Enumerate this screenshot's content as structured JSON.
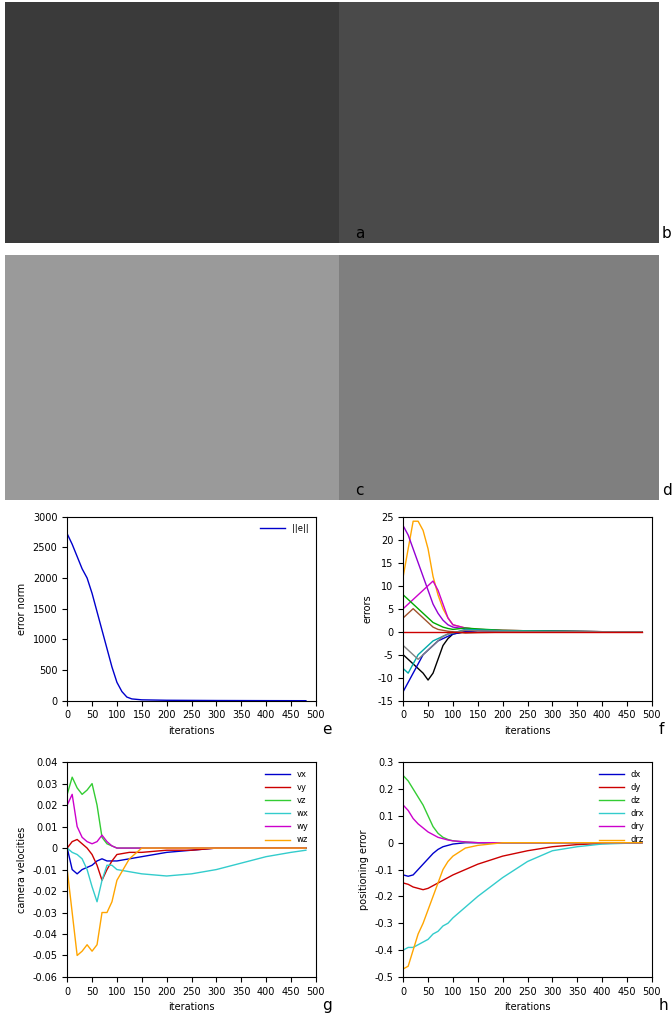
{
  "images": [
    {
      "label": "a"
    },
    {
      "label": "b"
    },
    {
      "label": "c"
    },
    {
      "label": "d"
    }
  ],
  "chart_data": [
    {
      "type": "line",
      "annotations": [
        "e"
      ],
      "xlabel": "iterations",
      "ylabel": "error norm",
      "xlim": [
        0,
        500
      ],
      "xticks": [
        0,
        50,
        100,
        150,
        200,
        250,
        300,
        350,
        400,
        450,
        500
      ],
      "ylim": [
        0,
        3000
      ],
      "yticks": [
        0,
        500,
        1000,
        1500,
        2000,
        2500,
        3000
      ],
      "legend": "upper right",
      "x": [
        0,
        10,
        20,
        30,
        40,
        50,
        60,
        70,
        80,
        90,
        100,
        110,
        120,
        130,
        150,
        200,
        300,
        400,
        480
      ],
      "series": [
        {
          "name": "||e||",
          "color": "#0000cc",
          "values": [
            2720,
            2550,
            2350,
            2150,
            2000,
            1750,
            1450,
            1150,
            850,
            550,
            300,
            150,
            60,
            30,
            15,
            8,
            4,
            2,
            1
          ]
        }
      ]
    },
    {
      "type": "line",
      "annotations": [
        "f"
      ],
      "xlabel": "iterations",
      "ylabel": "errors",
      "xlim": [
        0,
        500
      ],
      "xticks": [
        0,
        50,
        100,
        150,
        200,
        250,
        300,
        350,
        400,
        450,
        500
      ],
      "ylim": [
        -15,
        25
      ],
      "yticks": [
        -15,
        -10,
        -5,
        0,
        5,
        10,
        15,
        20,
        25
      ],
      "x": [
        0,
        10,
        20,
        30,
        40,
        50,
        60,
        70,
        80,
        90,
        100,
        125,
        150,
        200,
        300,
        400,
        480
      ],
      "series": [
        {
          "color": "#ffa500",
          "values": [
            12,
            18,
            24,
            24,
            22,
            18,
            12,
            8,
            5,
            3,
            1.5,
            0.8,
            0.5,
            0.3,
            0.1,
            0,
            0
          ]
        },
        {
          "color": "#9400d3",
          "values": [
            23,
            21,
            18,
            15,
            12,
            9,
            6,
            4,
            2.5,
            1.5,
            1,
            0.6,
            0.4,
            0.2,
            0.1,
            0,
            0
          ]
        },
        {
          "color": "#cc00cc",
          "values": [
            5,
            6,
            7,
            8,
            9,
            10,
            11,
            9,
            6,
            3,
            1.5,
            0.8,
            0.5,
            0.3,
            0.1,
            0,
            0
          ]
        },
        {
          "color": "#000000",
          "values": [
            -5,
            -6,
            -7,
            -8,
            -9,
            -10.5,
            -9,
            -6,
            -3,
            -1.5,
            -0.5,
            0,
            0.3,
            0.2,
            0.1,
            0,
            0
          ]
        },
        {
          "color": "#0000cc",
          "values": [
            -13,
            -11,
            -9,
            -7,
            -5,
            -4,
            -3,
            -2,
            -1.5,
            -1,
            -0.5,
            0,
            0.2,
            0.1,
            0,
            0,
            0
          ]
        },
        {
          "color": "#00aa00",
          "values": [
            8,
            7,
            6,
            5,
            4,
            3,
            2,
            1.5,
            1,
            0.7,
            0.5,
            0.8,
            0.6,
            0.3,
            0.1,
            0,
            0
          ]
        },
        {
          "color": "#00aaaa",
          "values": [
            -8,
            -9,
            -7,
            -5,
            -4,
            -3,
            -2,
            -1.5,
            -1,
            -0.5,
            -0.3,
            0.5,
            0.4,
            0.2,
            0.1,
            0,
            0
          ]
        },
        {
          "color": "#a0522d",
          "values": [
            3,
            4,
            5,
            4,
            3,
            2,
            1,
            0.5,
            0.3,
            0.1,
            0,
            -0.3,
            -0.2,
            -0.1,
            0,
            0,
            0
          ]
        },
        {
          "color": "#808080",
          "values": [
            -3,
            -4,
            -5,
            -6,
            -5,
            -4,
            -3,
            -2,
            -1,
            -0.5,
            -0.2,
            0.3,
            0.2,
            0.1,
            0,
            0,
            0
          ]
        },
        {
          "color": "#cc0000",
          "values": [
            0,
            0,
            0,
            0,
            0,
            0,
            0,
            0,
            0,
            0,
            0,
            0,
            0,
            0,
            0,
            0,
            0
          ]
        }
      ]
    },
    {
      "type": "line",
      "annotations": [
        "g"
      ],
      "xlabel": "iterations",
      "ylabel": "camera velocities",
      "xlim": [
        0,
        500
      ],
      "xticks": [
        0,
        50,
        100,
        150,
        200,
        250,
        300,
        350,
        400,
        450,
        500
      ],
      "ylim": [
        -0.06,
        0.04
      ],
      "yticks": [
        -0.06,
        -0.05,
        -0.04,
        -0.03,
        -0.02,
        -0.01,
        0,
        0.01,
        0.02,
        0.03,
        0.04
      ],
      "legend": "upper right",
      "x": [
        0,
        10,
        20,
        30,
        40,
        50,
        60,
        70,
        80,
        90,
        100,
        125,
        150,
        200,
        250,
        300,
        350,
        400,
        450,
        480
      ],
      "series": [
        {
          "name": "vx",
          "color": "#0000cc",
          "values": [
            0,
            -0.01,
            -0.012,
            -0.01,
            -0.009,
            -0.008,
            -0.006,
            -0.005,
            -0.006,
            -0.006,
            -0.006,
            -0.005,
            -0.004,
            -0.002,
            -0.001,
            0,
            0,
            0,
            0,
            0
          ]
        },
        {
          "name": "vy",
          "color": "#cc0000",
          "values": [
            0,
            0.003,
            0.004,
            0.002,
            0,
            -0.003,
            -0.008,
            -0.015,
            -0.01,
            -0.006,
            -0.003,
            -0.002,
            -0.002,
            -0.001,
            -0.001,
            0,
            0,
            0,
            0,
            0
          ]
        },
        {
          "name": "vz",
          "color": "#33cc33",
          "values": [
            0.025,
            0.033,
            0.028,
            0.025,
            0.027,
            0.03,
            0.02,
            0.005,
            0.002,
            0.001,
            0,
            0,
            0,
            0,
            0,
            0,
            0,
            0,
            0,
            0
          ]
        },
        {
          "name": "wx",
          "color": "#33cccc",
          "values": [
            0,
            -0.002,
            -0.003,
            -0.005,
            -0.01,
            -0.018,
            -0.025,
            -0.015,
            -0.008,
            -0.008,
            -0.01,
            -0.011,
            -0.012,
            -0.013,
            -0.012,
            -0.01,
            -0.007,
            -0.004,
            -0.002,
            -0.001
          ]
        },
        {
          "name": "wy",
          "color": "#cc00cc",
          "values": [
            0.02,
            0.025,
            0.01,
            0.005,
            0.003,
            0.002,
            0.003,
            0.006,
            0.003,
            0.001,
            0,
            0,
            0,
            0,
            0,
            0,
            0,
            0,
            0,
            0
          ]
        },
        {
          "name": "wz",
          "color": "#ffa500",
          "values": [
            -0.01,
            -0.03,
            -0.05,
            -0.048,
            -0.045,
            -0.048,
            -0.045,
            -0.03,
            -0.03,
            -0.025,
            -0.015,
            -0.005,
            0,
            0,
            0,
            0,
            0,
            0,
            0,
            0
          ]
        }
      ]
    },
    {
      "type": "line",
      "annotations": [
        "h"
      ],
      "xlabel": "iterations",
      "ylabel": "positioning error",
      "xlim": [
        0,
        500
      ],
      "xticks": [
        0,
        50,
        100,
        150,
        200,
        250,
        300,
        350,
        400,
        450,
        500
      ],
      "ylim": [
        -0.5,
        0.3
      ],
      "yticks": [
        -0.5,
        -0.4,
        -0.3,
        -0.2,
        -0.1,
        0,
        0.1,
        0.2,
        0.3
      ],
      "legend": "upper right",
      "x": [
        0,
        10,
        20,
        30,
        40,
        50,
        60,
        70,
        80,
        90,
        100,
        125,
        150,
        200,
        250,
        300,
        350,
        400,
        450,
        480
      ],
      "series": [
        {
          "name": "dx",
          "color": "#0000cc",
          "values": [
            -0.12,
            -0.125,
            -0.12,
            -0.1,
            -0.08,
            -0.06,
            -0.04,
            -0.025,
            -0.015,
            -0.01,
            -0.005,
            0,
            0,
            0,
            0,
            0,
            0,
            0,
            0,
            0
          ]
        },
        {
          "name": "dy",
          "color": "#cc0000",
          "values": [
            -0.15,
            -0.155,
            -0.165,
            -0.17,
            -0.175,
            -0.17,
            -0.16,
            -0.15,
            -0.14,
            -0.13,
            -0.12,
            -0.1,
            -0.08,
            -0.05,
            -0.03,
            -0.015,
            -0.007,
            -0.003,
            -0.001,
            0
          ]
        },
        {
          "name": "dz",
          "color": "#33cc33",
          "values": [
            0.25,
            0.23,
            0.2,
            0.17,
            0.14,
            0.1,
            0.06,
            0.035,
            0.02,
            0.012,
            0.007,
            0.002,
            0,
            0,
            0,
            0,
            0,
            0,
            0,
            0
          ]
        },
        {
          "name": "drx",
          "color": "#33cccc",
          "values": [
            -0.4,
            -0.39,
            -0.39,
            -0.38,
            -0.37,
            -0.36,
            -0.34,
            -0.33,
            -0.31,
            -0.3,
            -0.28,
            -0.24,
            -0.2,
            -0.13,
            -0.07,
            -0.03,
            -0.015,
            -0.005,
            -0.002,
            0
          ]
        },
        {
          "name": "dry",
          "color": "#cc00cc",
          "values": [
            0.14,
            0.12,
            0.09,
            0.07,
            0.055,
            0.04,
            0.03,
            0.02,
            0.015,
            0.01,
            0.007,
            0.003,
            0,
            0,
            0,
            0,
            0,
            0,
            0,
            0
          ]
        },
        {
          "name": "drz",
          "color": "#ffa500",
          "values": [
            -0.47,
            -0.46,
            -0.4,
            -0.34,
            -0.3,
            -0.25,
            -0.2,
            -0.15,
            -0.1,
            -0.07,
            -0.05,
            -0.02,
            -0.01,
            0,
            0,
            0,
            0,
            0,
            0,
            0
          ]
        }
      ]
    }
  ]
}
